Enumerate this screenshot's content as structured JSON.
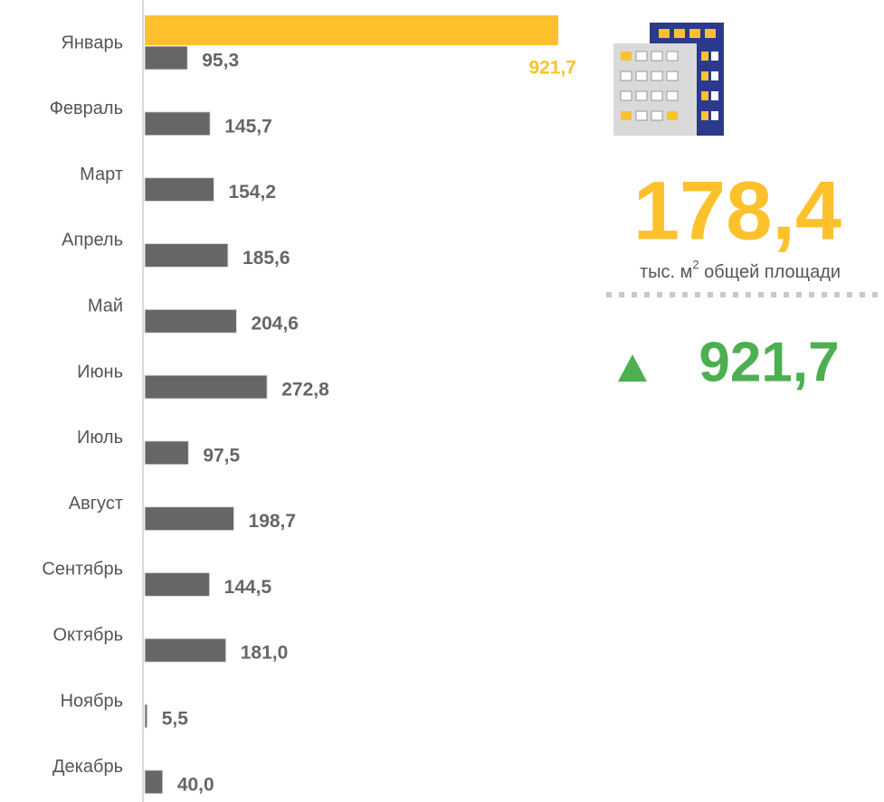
{
  "chart_data": {
    "type": "hbar",
    "categories": [
      "Январь",
      "Февраль",
      "Март",
      "Апрель",
      "Май",
      "Июнь",
      "Июль",
      "Август",
      "Сентябрь",
      "Октябрь",
      "Ноябрь",
      "Декабрь"
    ],
    "series": [
      {
        "color": "#666666",
        "values": [
          95.3,
          145.7,
          154.2,
          185.6,
          204.6,
          272.8,
          97.5,
          198.7,
          144.5,
          181.0,
          5.5,
          40.0
        ],
        "value_labels": [
          "95,3",
          "145,7",
          "154,2",
          "185,6",
          "204,6",
          "272,8",
          "97,5",
          "198,7",
          "144,5",
          "181,0",
          "5,5",
          "40,0"
        ]
      },
      {
        "color": "#FDC12C",
        "values": [
          921.7,
          null,
          null,
          null,
          null,
          null,
          null,
          null,
          null,
          null,
          null,
          null
        ],
        "value_labels": [
          "921,7",
          null,
          null,
          null,
          null,
          null,
          null,
          null,
          null,
          null,
          null,
          null
        ]
      }
    ],
    "summary": {
      "value": "178,4",
      "unit": "тыс. м",
      "unit_sup": "2",
      "unit_rest": " общей площади",
      "change": "921,7"
    }
  }
}
